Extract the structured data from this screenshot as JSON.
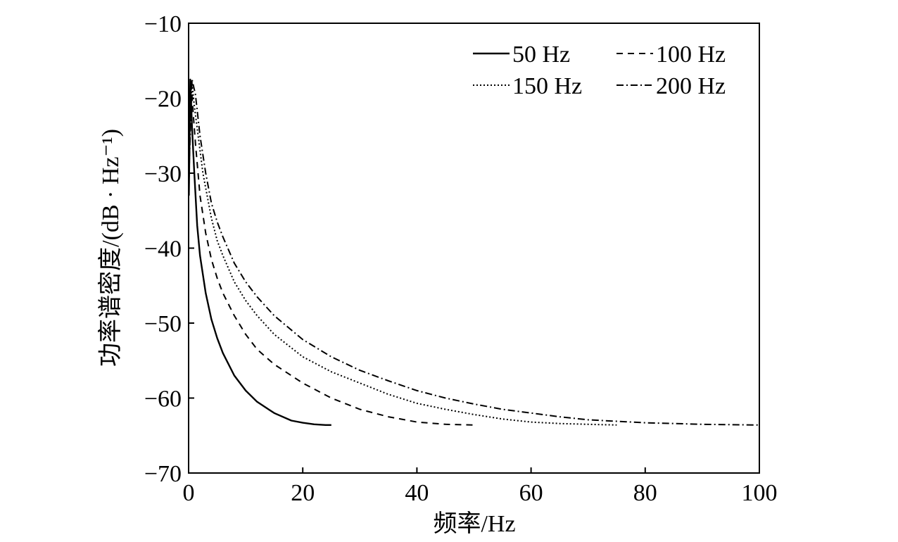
{
  "chart_data": {
    "type": "line",
    "title": "",
    "xlabel": "频率/Hz",
    "ylabel": "功率谱密度/(dB · Hz⁻¹)",
    "xlim": [
      0,
      100
    ],
    "ylim": [
      -70,
      -10
    ],
    "xticks": [
      "0",
      "20",
      "40",
      "60",
      "80",
      "100"
    ],
    "yticks": [
      "−10",
      "−20",
      "−30",
      "−40",
      "−50",
      "−60",
      "−70"
    ],
    "grid": false,
    "legend_position": "top-right",
    "series": [
      {
        "name": "50 Hz",
        "line_style": "solid",
        "x": [
          0.05,
          0.3,
          0.6,
          1.0,
          1.5,
          2,
          3,
          4,
          5,
          6,
          8,
          10,
          12,
          15,
          18,
          20,
          22,
          24,
          25
        ],
        "y": [
          -33,
          -17.5,
          -24,
          -30,
          -37,
          -41,
          -46,
          -49.5,
          -52,
          -54,
          -57,
          -59,
          -60.5,
          -62,
          -63,
          -63.3,
          -63.5,
          -63.6,
          -63.6
        ]
      },
      {
        "name": "100 Hz",
        "line_style": "dashed",
        "x": [
          0.05,
          0.4,
          0.8,
          1.2,
          2,
          3,
          4,
          5,
          6,
          8,
          10,
          12,
          15,
          20,
          25,
          30,
          35,
          40,
          45,
          50
        ],
        "y": [
          -32,
          -17.5,
          -22,
          -26,
          -33,
          -38,
          -41.5,
          -44,
          -46,
          -49,
          -51.5,
          -53.5,
          -55.5,
          -58,
          -60,
          -61.5,
          -62.5,
          -63.2,
          -63.5,
          -63.6
        ]
      },
      {
        "name": "150 Hz",
        "line_style": "dotted",
        "x": [
          0.05,
          0.5,
          1.0,
          1.5,
          2.5,
          4,
          5,
          6,
          8,
          10,
          12,
          15,
          20,
          25,
          30,
          35,
          40,
          45,
          50,
          55,
          60,
          65,
          70,
          75
        ],
        "y": [
          -31,
          -17.5,
          -21,
          -24,
          -30,
          -36,
          -39,
          -41,
          -44.5,
          -47,
          -49,
          -51.5,
          -54.5,
          -56.5,
          -58,
          -59.5,
          -60.7,
          -61.5,
          -62.2,
          -62.8,
          -63.2,
          -63.4,
          -63.5,
          -63.6
        ]
      },
      {
        "name": "200 Hz",
        "line_style": "dashdot",
        "x": [
          0.05,
          0.6,
          1.2,
          2,
          3,
          4,
          5,
          6,
          8,
          10,
          12,
          15,
          20,
          25,
          30,
          35,
          40,
          45,
          50,
          55,
          60,
          65,
          70,
          75,
          80,
          85,
          90,
          95,
          100
        ],
        "y": [
          -30,
          -17.5,
          -19.5,
          -25,
          -30,
          -34,
          -36.5,
          -38.5,
          -42,
          -44.5,
          -46.5,
          -49,
          -52.2,
          -54.5,
          -56.3,
          -57.7,
          -59,
          -60,
          -60.8,
          -61.5,
          -62,
          -62.5,
          -62.9,
          -63.1,
          -63.3,
          -63.4,
          -63.5,
          -63.55,
          -63.6
        ]
      }
    ]
  }
}
